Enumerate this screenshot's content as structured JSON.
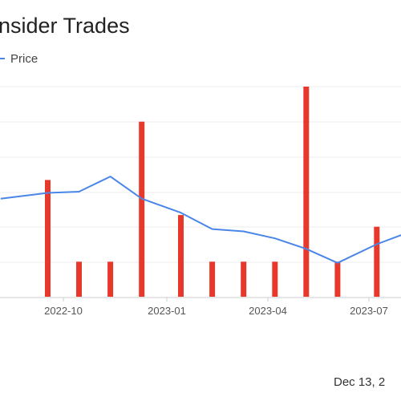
{
  "chart_data": {
    "type": "bar",
    "title": "nsider Trades",
    "legend": [
      {
        "label": "Price",
        "color": "#4a86e8",
        "marker": "line"
      }
    ],
    "legend_placement": "top-left",
    "grid": true,
    "x_ticks": [
      "2022-10",
      "2023-01",
      "2023-04",
      "2023-07"
    ],
    "bars": {
      "color": "#e8382c",
      "x": [
        "2022-09-17",
        "2022-10-15",
        "2022-11-12",
        "2022-12-10",
        "2023-01-14",
        "2023-02-11",
        "2023-03-11",
        "2023-04-08",
        "2023-05-06",
        "2023-06-03",
        "2023-07-08"
      ],
      "values": [
        10,
        3,
        3,
        15,
        7,
        3,
        3,
        3,
        18,
        3,
        6
      ]
    },
    "series": [
      {
        "name": "Price",
        "color": "#4a86e8",
        "x": [
          "2022-08-06",
          "2022-09-17",
          "2022-10-15",
          "2022-11-12",
          "2022-12-10",
          "2023-01-14",
          "2023-02-11",
          "2023-03-11",
          "2023-04-08",
          "2023-05-06",
          "2023-06-03",
          "2023-07-08",
          "2023-08-05"
        ],
        "values": [
          8.4,
          8.9,
          9.0,
          10.3,
          8.4,
          7.2,
          5.8,
          5.6,
          5.0,
          4.1,
          2.9,
          4.5,
          5.5
        ]
      }
    ],
    "footer": "Dec 13, 2"
  }
}
